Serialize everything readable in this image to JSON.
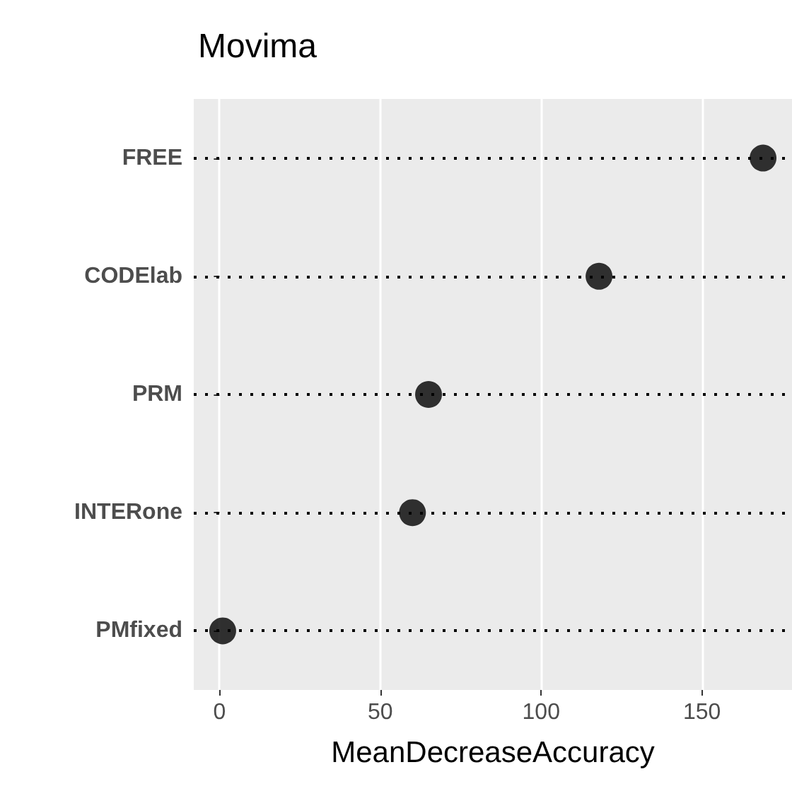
{
  "chart_data": {
    "type": "scatter",
    "title": "Movima",
    "xlabel": "MeanDecreaseAccuracy",
    "orientation": "horizontal",
    "categories": [
      "FREE",
      "CODElab",
      "PRM",
      "INTERone",
      "PMfixed"
    ],
    "values": [
      169,
      118,
      65,
      60,
      1
    ],
    "color": "#000000",
    "marker": "circle",
    "xlim": [
      -8,
      178
    ],
    "xticks": [
      0,
      50,
      100,
      150
    ],
    "grid": true
  }
}
